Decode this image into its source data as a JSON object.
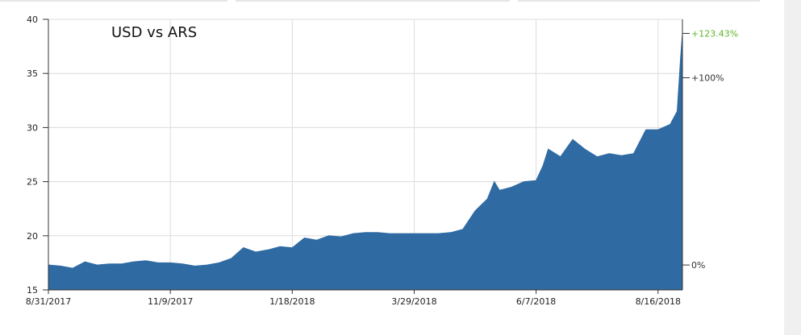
{
  "colors": {
    "area_fill": "#2f6aa3",
    "grid": "#dcdcdc",
    "axis": "#333333",
    "highlight_pct": "#5fb52b"
  },
  "chart_data": {
    "type": "area",
    "title": "USD vs ARS",
    "xlabel": "",
    "ylabel": "",
    "ylim": [
      15,
      40
    ],
    "y_ticks": [
      15,
      20,
      25,
      30,
      35,
      40
    ],
    "x_ticks": [
      "8/31/2017",
      "11/9/2017",
      "1/18/2018",
      "3/29/2018",
      "6/7/2018",
      "8/16/2018"
    ],
    "x_range": [
      "8/31/2017",
      "8/30/2018"
    ],
    "grid": true,
    "right_axis_labels": [
      {
        "label": "+123.43%",
        "value": 38.7,
        "highlight": true
      },
      {
        "label": "+100%",
        "value": 34.6,
        "highlight": false
      },
      {
        "label": "0%",
        "value": 17.3,
        "highlight": false
      }
    ],
    "series": [
      {
        "x": [
          "2017-08-31",
          "2017-09-07",
          "2017-09-14",
          "2017-09-21",
          "2017-09-28",
          "2017-10-05",
          "2017-10-12",
          "2017-10-19",
          "2017-10-26",
          "2017-11-02",
          "2017-11-09",
          "2017-11-16",
          "2017-11-23",
          "2017-11-30",
          "2017-12-07",
          "2017-12-14",
          "2017-12-21",
          "2017-12-28",
          "2018-01-04",
          "2018-01-11",
          "2018-01-18",
          "2018-01-25",
          "2018-02-01",
          "2018-02-08",
          "2018-02-15",
          "2018-02-22",
          "2018-03-01",
          "2018-03-08",
          "2018-03-15",
          "2018-03-22",
          "2018-03-29",
          "2018-04-05",
          "2018-04-12",
          "2018-04-19",
          "2018-04-26",
          "2018-05-03",
          "2018-05-10",
          "2018-05-14",
          "2018-05-17",
          "2018-05-24",
          "2018-05-31",
          "2018-06-07",
          "2018-06-11",
          "2018-06-14",
          "2018-06-21",
          "2018-06-28",
          "2018-07-05",
          "2018-07-12",
          "2018-07-19",
          "2018-07-26",
          "2018-08-02",
          "2018-08-09",
          "2018-08-16",
          "2018-08-23",
          "2018-08-27",
          "2018-08-29",
          "2018-08-30"
        ],
        "values": [
          17.3,
          17.2,
          17.0,
          17.6,
          17.3,
          17.4,
          17.4,
          17.6,
          17.7,
          17.5,
          17.5,
          17.4,
          17.2,
          17.3,
          17.5,
          17.9,
          18.9,
          18.5,
          18.7,
          19.0,
          18.9,
          19.8,
          19.6,
          20.0,
          19.9,
          20.2,
          20.3,
          20.3,
          20.2,
          20.2,
          20.2,
          20.2,
          20.2,
          20.3,
          20.6,
          22.3,
          23.4,
          25.0,
          24.2,
          24.5,
          25.0,
          25.1,
          26.5,
          28.0,
          27.3,
          28.9,
          28.0,
          27.3,
          27.6,
          27.4,
          27.6,
          29.8,
          29.8,
          30.3,
          31.5,
          36.5,
          38.7
        ]
      }
    ]
  }
}
